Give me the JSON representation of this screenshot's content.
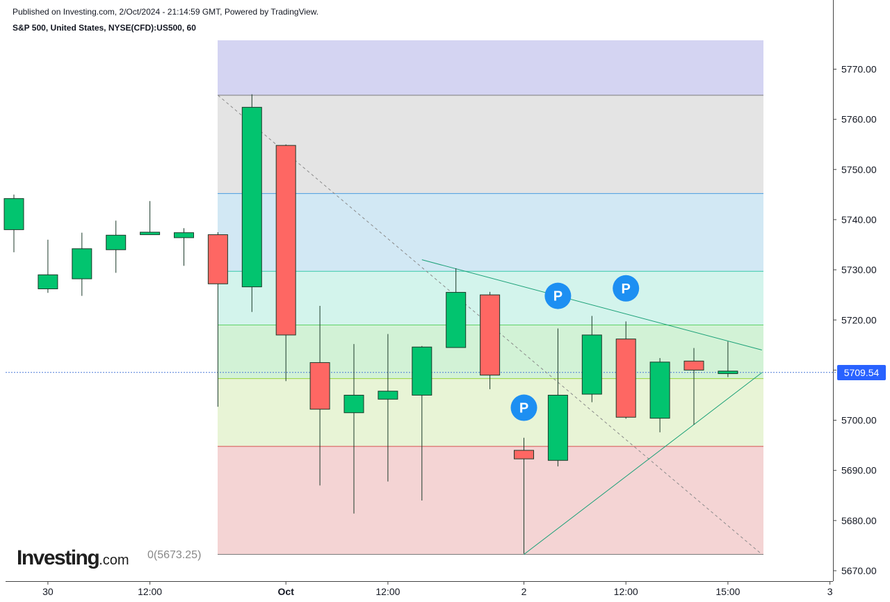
{
  "header": {
    "published": "Published on Investing.com, 2/Oct/2024 - 21:14:59 GMT, Powered by TradingView.",
    "instrument": "S&P 500, United States, NYSE(CFD):US500, 60"
  },
  "logo": {
    "brand": "Investing",
    "suffix": ".com"
  },
  "colors": {
    "bull": "#02c46f",
    "bear": "#fe6763",
    "wick": "#1c3a2a",
    "last_price_line": "#4a78d8",
    "badge": "#2962ff"
  },
  "chart_data": {
    "type": "candlestick",
    "timeframe": "60",
    "y_range": [
      5667,
      5775
    ],
    "y_ticks": [
      5670,
      5680,
      5690,
      5700,
      5710,
      5720,
      5730,
      5740,
      5750,
      5760,
      5770
    ],
    "y_tick_labels": [
      "5670.00",
      "5680.00",
      "5690.00",
      "5700.00",
      "5710.00",
      "5720.00",
      "5730.00",
      "5740.00",
      "5750.00",
      "5760.00",
      "5770.00"
    ],
    "x_tick_labels": [
      "30",
      "12:00",
      "Oct",
      "12:00",
      "2",
      "12:00",
      "15:00",
      "3"
    ],
    "x_tick_slots": [
      1,
      4,
      8,
      11,
      15,
      18,
      21,
      24
    ],
    "last_price": 5709.54,
    "last_price_label": "5709.54",
    "candles": [
      {
        "slot": 0,
        "o": 5738.0,
        "h": 5745.0,
        "l": 5733.5,
        "c": 5744.2
      },
      {
        "slot": 1,
        "o": 5726.2,
        "h": 5736.0,
        "l": 5725.4,
        "c": 5729.0
      },
      {
        "slot": 2,
        "o": 5728.2,
        "h": 5737.4,
        "l": 5724.8,
        "c": 5734.2
      },
      {
        "slot": 3,
        "o": 5734.0,
        "h": 5739.8,
        "l": 5729.4,
        "c": 5736.9
      },
      {
        "slot": 4,
        "o": 5737.0,
        "h": 5743.7,
        "l": 5737.0,
        "c": 5737.5
      },
      {
        "slot": 5,
        "o": 5736.4,
        "h": 5738.3,
        "l": 5730.8,
        "c": 5737.4
      },
      {
        "slot": 6,
        "o": 5737.0,
        "h": 5737.5,
        "l": 5702.7,
        "c": 5727.2
      },
      {
        "slot": 7,
        "o": 5726.6,
        "h": 5765.0,
        "l": 5721.6,
        "c": 5762.4
      },
      {
        "slot": 8,
        "o": 5754.8,
        "h": 5755.0,
        "l": 5707.8,
        "c": 5717.0
      },
      {
        "slot": 9,
        "o": 5711.5,
        "h": 5722.8,
        "l": 5687.0,
        "c": 5702.2
      },
      {
        "slot": 10,
        "o": 5701.5,
        "h": 5715.2,
        "l": 5681.4,
        "c": 5705.0
      },
      {
        "slot": 11,
        "o": 5704.2,
        "h": 5717.2,
        "l": 5687.8,
        "c": 5705.8
      },
      {
        "slot": 12,
        "o": 5705.0,
        "h": 5714.8,
        "l": 5684.0,
        "c": 5714.6
      },
      {
        "slot": 13,
        "o": 5714.5,
        "h": 5730.3,
        "l": 5714.5,
        "c": 5725.5
      },
      {
        "slot": 14,
        "o": 5725.0,
        "h": 5725.6,
        "l": 5706.2,
        "c": 5709.0
      },
      {
        "slot": 15,
        "o": 5694.0,
        "h": 5696.5,
        "l": 5673.4,
        "c": 5692.3
      },
      {
        "slot": 16,
        "o": 5692.0,
        "h": 5718.3,
        "l": 5690.8,
        "c": 5705.0
      },
      {
        "slot": 17,
        "o": 5705.2,
        "h": 5720.8,
        "l": 5703.6,
        "c": 5717.0
      },
      {
        "slot": 18,
        "o": 5716.2,
        "h": 5719.7,
        "l": 5700.3,
        "c": 5700.6
      },
      {
        "slot": 19,
        "o": 5700.4,
        "h": 5712.4,
        "l": 5697.6,
        "c": 5711.6
      },
      {
        "slot": 20,
        "o": 5711.8,
        "h": 5714.4,
        "l": 5699.1,
        "c": 5710.0
      },
      {
        "slot": 21,
        "o": 5709.3,
        "h": 5715.7,
        "l": 5708.6,
        "c": 5709.8
      }
    ],
    "fibonacci": {
      "levels": [
        5764.8,
        5745.2,
        5729.7,
        5719.0,
        5708.3,
        5694.8,
        5673.25
      ],
      "label": "0(5673.25)",
      "top_band_color": "#d4d4f2",
      "band_colors": [
        "#e4e4e4",
        "#d2e8f4",
        "#d3f4ec",
        "#d2f2d6",
        "#e8f4d6",
        "#f4d4d4"
      ],
      "line_colors": [
        "#7a7a7a",
        "#4a9ce0",
        "#36c8a8",
        "#5ed268",
        "#9ad43c",
        "#d65050",
        "#7a7a7a"
      ]
    },
    "drawings": {
      "diagonal_dashed": {
        "from": {
          "slot": 6,
          "price": 5764.8
        },
        "to": {
          "slot": 22,
          "price": 5673.25
        }
      },
      "resistance_line": {
        "from": {
          "slot": 12,
          "price": 5732.0
        },
        "to": {
          "slot": 22,
          "price": 5714.0
        }
      },
      "support_line": {
        "from": {
          "slot": 15,
          "price": 5673.25
        },
        "to": {
          "slot": 22,
          "price": 5709.5
        }
      }
    },
    "markers": [
      {
        "label": "P",
        "slot": 15,
        "price": 5702.5
      },
      {
        "label": "P",
        "slot": 16,
        "price": 5724.8
      },
      {
        "label": "P",
        "slot": 18,
        "price": 5726.3
      }
    ]
  }
}
